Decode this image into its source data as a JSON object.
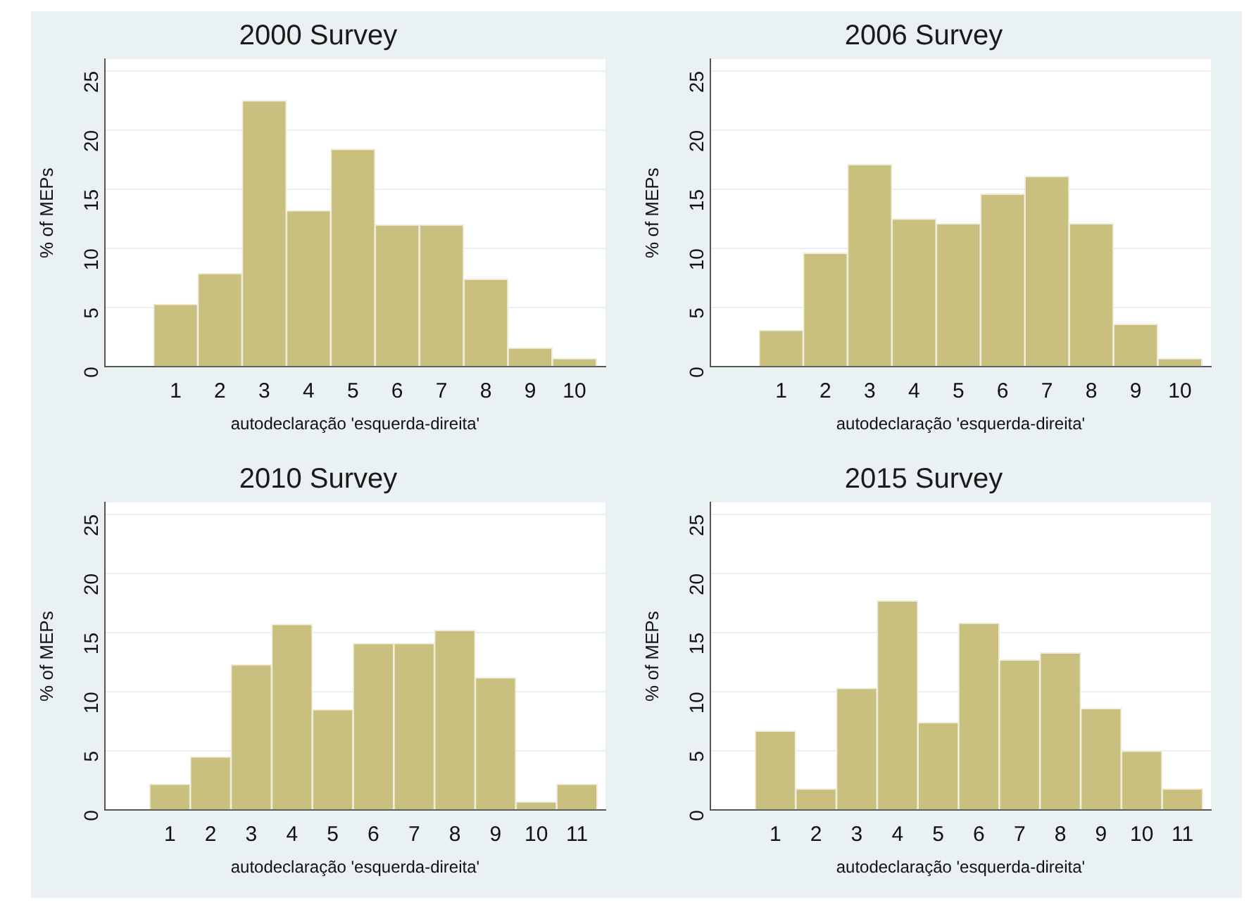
{
  "chart_data": [
    {
      "type": "histogram",
      "title": "2000 Survey",
      "xlabel": "autodeclaração 'esquerda-direita'",
      "ylabel": "% of MEPs",
      "bins": [
        0.5,
        1.5,
        2.5,
        3.5,
        4.5,
        5.5,
        6.5,
        7.5,
        8.5,
        9.5,
        10.5
      ],
      "values": [
        5.3,
        7.9,
        22.5,
        13.2,
        18.4,
        12.0,
        12.0,
        7.4,
        1.6,
        0.7
      ],
      "color": "#c9c07f",
      "xlim": [
        -0.6,
        10.7
      ],
      "xticks": [
        1,
        2,
        3,
        4,
        5,
        6,
        7,
        8,
        9,
        10
      ],
      "ylim": [
        0,
        26
      ],
      "yticks": [
        0,
        5,
        10,
        15,
        20,
        25
      ],
      "grid": "y"
    },
    {
      "type": "histogram",
      "title": "2006 Survey",
      "xlabel": "autodeclaração 'esquerda-direita'",
      "ylabel": "% of MEPs",
      "bins": [
        0.5,
        1.5,
        2.5,
        3.5,
        4.5,
        5.5,
        6.5,
        7.5,
        8.5,
        9.5,
        10.5
      ],
      "values": [
        3.1,
        9.6,
        17.1,
        12.5,
        12.1,
        14.6,
        16.1,
        12.1,
        3.6,
        0.7
      ],
      "color": "#c9c07f",
      "xlim": [
        -0.6,
        10.7
      ],
      "xticks": [
        1,
        2,
        3,
        4,
        5,
        6,
        7,
        8,
        9,
        10
      ],
      "ylim": [
        0,
        26
      ],
      "yticks": [
        0,
        5,
        10,
        15,
        20,
        25
      ],
      "grid": "y"
    },
    {
      "type": "histogram",
      "title": "2010 Survey",
      "xlabel": "autodeclaração 'esquerda-direita'",
      "ylabel": "% of MEPs",
      "bins": [
        0.5,
        1.5,
        2.5,
        3.5,
        4.5,
        5.5,
        6.5,
        7.5,
        8.5,
        9.5,
        10.5,
        11.5
      ],
      "values": [
        2.2,
        4.5,
        12.3,
        15.7,
        8.5,
        14.1,
        14.1,
        15.2,
        11.2,
        0.7,
        2.2
      ],
      "color": "#c9c07f",
      "xlim": [
        -0.6,
        11.7
      ],
      "xticks": [
        1,
        2,
        3,
        4,
        5,
        6,
        7,
        8,
        9,
        10,
        11
      ],
      "ylim": [
        0,
        26
      ],
      "yticks": [
        0,
        5,
        10,
        15,
        20,
        25
      ],
      "grid": "y"
    },
    {
      "type": "histogram",
      "title": "2015 Survey",
      "xlabel": "autodeclaração 'esquerda-direita'",
      "ylabel": "% of MEPs",
      "bins": [
        0.5,
        1.5,
        2.5,
        3.5,
        4.5,
        5.5,
        6.5,
        7.5,
        8.5,
        9.5,
        10.5,
        11.5
      ],
      "values": [
        6.7,
        1.8,
        10.3,
        17.7,
        7.4,
        15.8,
        12.7,
        13.3,
        8.6,
        5.0,
        1.8
      ],
      "color": "#c9c07f",
      "xlim": [
        -0.6,
        11.7
      ],
      "xticks": [
        1,
        2,
        3,
        4,
        5,
        6,
        7,
        8,
        9,
        10,
        11
      ],
      "ylim": [
        0,
        26
      ],
      "yticks": [
        0,
        5,
        10,
        15,
        20,
        25
      ],
      "grid": "y"
    }
  ]
}
